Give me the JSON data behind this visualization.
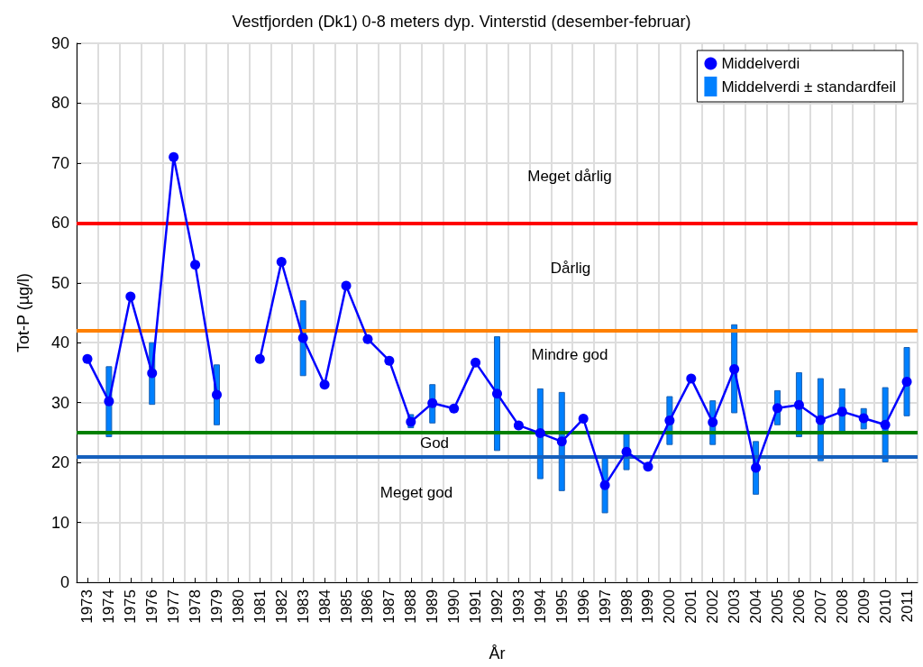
{
  "chart_data": {
    "type": "line",
    "title": "Vestfjorden (Dk1) 0-8 meters dyp. Vinterstid (desember-februar)",
    "xlabel": "År",
    "ylabel": "Tot-P (µg/l)",
    "categories": [
      "1973",
      "1974",
      "1975",
      "1976",
      "1977",
      "1978",
      "1979",
      "1980",
      "1981",
      "1982",
      "1983",
      "1984",
      "1985",
      "1986",
      "1987",
      "1988",
      "1989",
      "1990",
      "1991",
      "1992",
      "1993",
      "1994",
      "1995",
      "1996",
      "1997",
      "1998",
      "1999",
      "2000",
      "2001",
      "2002",
      "2003",
      "2004",
      "2005",
      "2006",
      "2007",
      "2008",
      "2009",
      "2010",
      "2011"
    ],
    "series": [
      {
        "name": "Middelverdi",
        "color": "#0000ff",
        "values": [
          37.3,
          30.2,
          47.7,
          34.9,
          71,
          53,
          31.3,
          null,
          37.3,
          53.5,
          40.8,
          33,
          49.5,
          40.6,
          37,
          26.8,
          29.9,
          29,
          36.7,
          31.5,
          26.2,
          24.9,
          23.5,
          27.3,
          16.2,
          21.8,
          19.3,
          27,
          34,
          26.7,
          35.6,
          19.1,
          29.1,
          29.6,
          27.1,
          28.5,
          27.4,
          26.3,
          33.5
        ]
      },
      {
        "name": "Middelverdi ± standardfeil",
        "type": "bar",
        "color": "#0080ff",
        "base": [
          null,
          24.3,
          null,
          29.7,
          null,
          null,
          26.3,
          null,
          null,
          null,
          34.5,
          null,
          null,
          null,
          null,
          25.8,
          26.6,
          null,
          null,
          22,
          null,
          17.3,
          15.3,
          null,
          11.6,
          18.8,
          null,
          23,
          null,
          23,
          28.3,
          14.7,
          26.3,
          24.3,
          20.3,
          25,
          25.6,
          20.1,
          27.8
        ],
        "values": [
          null,
          11.7,
          null,
          10.3,
          null,
          null,
          10,
          null,
          null,
          null,
          12.5,
          null,
          null,
          null,
          null,
          2.2,
          6.4,
          null,
          null,
          19,
          null,
          15,
          16.4,
          null,
          9.4,
          6.2,
          null,
          8,
          null,
          7.3,
          14.7,
          8.8,
          5.7,
          10.7,
          13.7,
          7.3,
          3.4,
          12.4,
          11.4
        ]
      }
    ],
    "ylim": [
      0,
      90
    ],
    "yticks": [
      0,
      10,
      20,
      30,
      40,
      50,
      60,
      70,
      80,
      90
    ],
    "grid": true,
    "legend": "top right",
    "marker": "circle",
    "line_style": "solid",
    "ref_lines": [
      {
        "axis": "y",
        "value": 60,
        "color": "#ff0000"
      },
      {
        "axis": "y",
        "value": 42,
        "color": "#ff8000"
      },
      {
        "axis": "y",
        "value": 25,
        "color": "#008000"
      },
      {
        "axis": "y",
        "value": 21,
        "color": "#1560bd"
      }
    ],
    "annotations": [
      "Meget dårlig",
      "Dårlig",
      "Mindre god",
      "God",
      "Meget god"
    ]
  }
}
